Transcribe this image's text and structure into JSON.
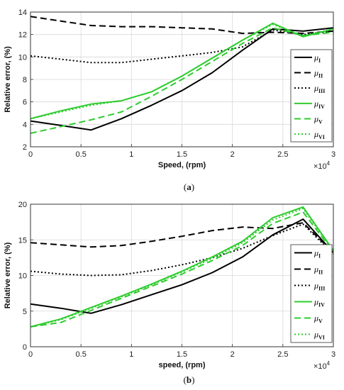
{
  "chart_data": [
    {
      "type": "line",
      "xlabel": "Speed, (rpm)",
      "ylabel": "Relative error, (%)",
      "xlim": [
        0,
        3
      ],
      "ylim": [
        2,
        14
      ],
      "xticks": [
        "0",
        "0.5",
        "1",
        "1.5",
        "2",
        "2.5",
        "3"
      ],
      "yticks": [
        "2",
        "4",
        "6",
        "8",
        "10",
        "12",
        "14"
      ],
      "x_multiplier": "×10",
      "x_multiplier_exp": "4",
      "grid": true,
      "legend_position": "right",
      "caption": "a",
      "x": [
        0,
        0.3,
        0.6,
        0.9,
        1.2,
        1.5,
        1.8,
        2.1,
        2.4,
        2.7,
        3.0
      ],
      "series": [
        {
          "name": "μ",
          "sub": "I",
          "color": "#000000",
          "dash": "solid",
          "values": [
            4.3,
            3.9,
            3.5,
            4.5,
            5.7,
            7.0,
            8.6,
            10.6,
            12.5,
            12.3,
            12.6
          ]
        },
        {
          "name": "μ",
          "sub": "II",
          "color": "#000000",
          "dash": "dashed",
          "values": [
            13.6,
            13.2,
            12.8,
            12.7,
            12.7,
            12.6,
            12.5,
            12.1,
            12.2,
            12.1,
            12.3
          ]
        },
        {
          "name": "μ",
          "sub": "III",
          "color": "#000000",
          "dash": "dotted",
          "values": [
            10.1,
            9.8,
            9.5,
            9.5,
            9.8,
            10.1,
            10.4,
            10.9,
            12.4,
            12.0,
            12.3
          ]
        },
        {
          "name": "μ",
          "sub": "IV",
          "color": "#2ecc2e",
          "dash": "solid",
          "values": [
            4.5,
            5.2,
            5.8,
            6.1,
            6.9,
            8.3,
            9.9,
            11.5,
            13.0,
            11.8,
            12.5
          ]
        },
        {
          "name": "μ",
          "sub": "V",
          "color": "#2ecc2e",
          "dash": "dashed",
          "values": [
            3.2,
            3.8,
            4.4,
            5.1,
            6.5,
            8.0,
            9.6,
            11.2,
            12.6,
            11.9,
            12.2
          ]
        },
        {
          "name": "μ",
          "sub": "VI",
          "color": "#2ecc2e",
          "dash": "dotted",
          "values": [
            4.5,
            5.1,
            5.7,
            6.1,
            6.9,
            8.3,
            9.9,
            11.5,
            12.9,
            11.9,
            12.5
          ]
        }
      ]
    },
    {
      "type": "line",
      "xlabel": "speed, (rpm)",
      "ylabel": "Relative error, (%)",
      "xlim": [
        0,
        3
      ],
      "ylim": [
        0,
        20
      ],
      "xticks": [
        "0",
        "0.5",
        "1",
        "1.5",
        "2",
        "2.5",
        "3"
      ],
      "yticks": [
        "0",
        "5",
        "10",
        "15",
        "20"
      ],
      "x_multiplier": "×10",
      "x_multiplier_exp": "4",
      "grid": true,
      "legend_position": "right",
      "caption": "b",
      "x": [
        0,
        0.3,
        0.6,
        0.9,
        1.2,
        1.5,
        1.8,
        2.1,
        2.4,
        2.7,
        3.0
      ],
      "series": [
        {
          "name": "μ",
          "sub": "I",
          "color": "#000000",
          "dash": "solid",
          "values": [
            6.0,
            5.4,
            4.7,
            5.9,
            7.3,
            8.7,
            10.4,
            12.6,
            15.7,
            17.9,
            13.2
          ]
        },
        {
          "name": "μ",
          "sub": "II",
          "color": "#000000",
          "dash": "dashed",
          "values": [
            14.6,
            14.3,
            14.0,
            14.2,
            14.8,
            15.5,
            16.3,
            16.8,
            16.6,
            17.4,
            13.2
          ]
        },
        {
          "name": "μ",
          "sub": "III",
          "color": "#000000",
          "dash": "dotted",
          "values": [
            10.6,
            10.2,
            10.0,
            10.1,
            10.7,
            11.5,
            12.5,
            13.8,
            15.6,
            17.2,
            13.0
          ]
        },
        {
          "name": "μ",
          "sub": "IV",
          "color": "#2ecc2e",
          "dash": "solid",
          "values": [
            2.8,
            3.9,
            5.5,
            7.1,
            8.8,
            10.6,
            12.6,
            14.8,
            18.1,
            19.6,
            13.5
          ]
        },
        {
          "name": "μ",
          "sub": "V",
          "color": "#2ecc2e",
          "dash": "dashed",
          "values": [
            2.8,
            3.4,
            5.1,
            6.8,
            8.5,
            10.2,
            12.1,
            14.2,
            17.3,
            18.9,
            13.3
          ]
        },
        {
          "name": "μ",
          "sub": "VI",
          "color": "#2ecc2e",
          "dash": "dotted",
          "values": [
            2.8,
            3.8,
            5.4,
            7.0,
            8.7,
            10.5,
            12.4,
            14.6,
            17.8,
            19.4,
            13.4
          ]
        }
      ]
    }
  ]
}
